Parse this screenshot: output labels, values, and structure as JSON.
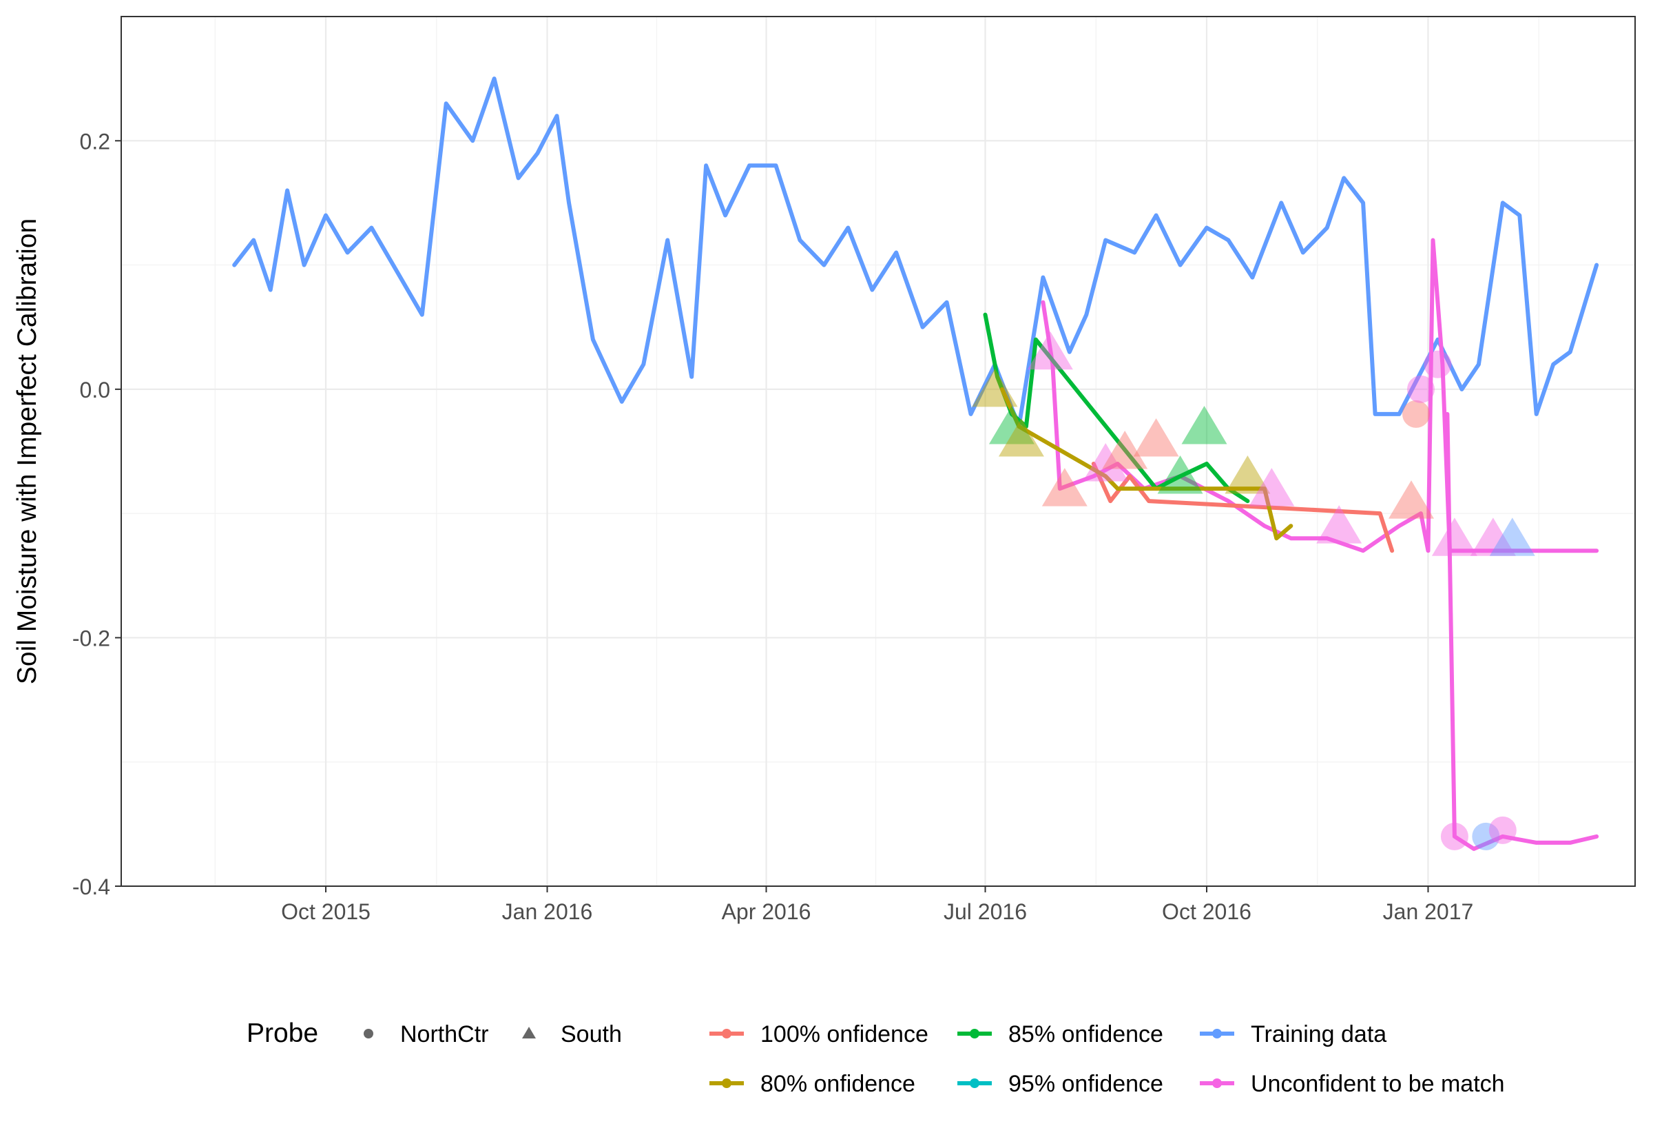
{
  "chart_data": {
    "type": "line",
    "title": "",
    "xlabel": "",
    "ylabel": "Soil Moisture with Imperfect Calibration",
    "x_axis": {
      "type": "date",
      "range": [
        "2015-07-08",
        "2017-03-28"
      ],
      "ticks": [
        {
          "date": "2015-10-01",
          "label": "Oct 2015"
        },
        {
          "date": "2016-01-01",
          "label": "Jan 2016"
        },
        {
          "date": "2016-04-01",
          "label": "Apr 2016"
        },
        {
          "date": "2016-07-01",
          "label": "Jul 2016"
        },
        {
          "date": "2016-10-01",
          "label": "Oct 2016"
        },
        {
          "date": "2017-01-01",
          "label": "Jan 2017"
        }
      ]
    },
    "y_axis": {
      "range": [
        -0.4,
        0.3
      ],
      "ticks": [
        {
          "value": 0.2,
          "label": "0.2"
        },
        {
          "value": 0.0,
          "label": "0.0"
        },
        {
          "value": -0.2,
          "label": "-0.2"
        },
        {
          "value": -0.4,
          "label": "-0.4"
        }
      ]
    },
    "grid": true,
    "legend_position": "bottom",
    "shape_legend": {
      "title": "Probe",
      "items": [
        {
          "label": "NorthCtr",
          "shape": "circle"
        },
        {
          "label": "South",
          "shape": "triangle"
        }
      ]
    },
    "color_legend": [
      {
        "label": "100% onfidence",
        "color": "#F8766D"
      },
      {
        "label": "80% onfidence",
        "color": "#B79F00"
      },
      {
        "label": "85% onfidence",
        "color": "#00BA38"
      },
      {
        "label": "95% onfidence",
        "color": "#00BFC4"
      },
      {
        "label": "Training data",
        "color": "#619CFF"
      },
      {
        "label": "Unconfident to be match",
        "color": "#F564E3"
      }
    ],
    "series": [
      {
        "name": "Training data",
        "color": "#619CFF",
        "points": [
          [
            "2015-08-24",
            0.1
          ],
          [
            "2015-09-01",
            0.12
          ],
          [
            "2015-09-08",
            0.08
          ],
          [
            "2015-09-15",
            0.16
          ],
          [
            "2015-09-22",
            0.1
          ],
          [
            "2015-10-01",
            0.14
          ],
          [
            "2015-10-10",
            0.11
          ],
          [
            "2015-10-20",
            0.13
          ],
          [
            "2015-11-01",
            0.09
          ],
          [
            "2015-11-10",
            0.06
          ],
          [
            "2015-11-20",
            0.23
          ],
          [
            "2015-12-01",
            0.2
          ],
          [
            "2015-12-10",
            0.25
          ],
          [
            "2015-12-20",
            0.17
          ],
          [
            "2015-12-28",
            0.19
          ],
          [
            "2016-01-05",
            0.22
          ],
          [
            "2016-01-10",
            0.15
          ],
          [
            "2016-01-20",
            0.04
          ],
          [
            "2016-02-01",
            -0.01
          ],
          [
            "2016-02-10",
            0.02
          ],
          [
            "2016-02-20",
            0.12
          ],
          [
            "2016-03-01",
            0.01
          ],
          [
            "2016-03-07",
            0.18
          ],
          [
            "2016-03-15",
            0.14
          ],
          [
            "2016-03-25",
            0.18
          ],
          [
            "2016-04-05",
            0.18
          ],
          [
            "2016-04-15",
            0.12
          ],
          [
            "2016-04-25",
            0.1
          ],
          [
            "2016-05-05",
            0.13
          ],
          [
            "2016-05-15",
            0.08
          ],
          [
            "2016-05-25",
            0.11
          ],
          [
            "2016-06-05",
            0.05
          ],
          [
            "2016-06-15",
            0.07
          ],
          [
            "2016-06-25",
            -0.02
          ],
          [
            "2016-07-05",
            0.02
          ],
          [
            "2016-07-15",
            -0.03
          ],
          [
            "2016-07-25",
            0.09
          ],
          [
            "2016-08-05",
            0.03
          ],
          [
            "2016-08-12",
            0.06
          ],
          [
            "2016-08-20",
            0.12
          ],
          [
            "2016-09-01",
            0.11
          ],
          [
            "2016-09-10",
            0.14
          ],
          [
            "2016-09-20",
            0.1
          ],
          [
            "2016-10-01",
            0.13
          ],
          [
            "2016-10-10",
            0.12
          ],
          [
            "2016-10-20",
            0.09
          ],
          [
            "2016-11-01",
            0.15
          ],
          [
            "2016-11-10",
            0.11
          ],
          [
            "2016-11-20",
            0.13
          ],
          [
            "2016-11-27",
            0.17
          ],
          [
            "2016-12-05",
            0.15
          ],
          [
            "2016-12-10",
            -0.02
          ],
          [
            "2016-12-20",
            -0.02
          ],
          [
            "2016-12-28",
            0.01
          ],
          [
            "2017-01-05",
            0.04
          ],
          [
            "2017-01-15",
            0.0
          ],
          [
            "2017-01-22",
            0.02
          ],
          [
            "2017-02-01",
            0.15
          ],
          [
            "2017-02-08",
            0.14
          ],
          [
            "2017-02-15",
            -0.02
          ],
          [
            "2017-02-22",
            0.02
          ],
          [
            "2017-03-01",
            0.03
          ],
          [
            "2017-03-12",
            0.1
          ]
        ]
      },
      {
        "name": "Unconfident to be match",
        "color": "#F564E3",
        "points": [
          [
            "2016-07-25",
            0.07
          ],
          [
            "2016-07-29",
            0.02
          ],
          [
            "2016-08-01",
            -0.08
          ],
          [
            "2016-08-15",
            -0.07
          ],
          [
            "2016-08-25",
            -0.06
          ],
          [
            "2016-09-05",
            -0.08
          ],
          [
            "2016-09-20",
            -0.07
          ],
          [
            "2016-10-10",
            -0.09
          ],
          [
            "2016-10-25",
            -0.11
          ],
          [
            "2016-11-05",
            -0.12
          ],
          [
            "2016-11-20",
            -0.12
          ],
          [
            "2016-12-05",
            -0.13
          ],
          [
            "2016-12-20",
            -0.11
          ],
          [
            "2016-12-29",
            -0.1
          ],
          [
            "2017-01-01",
            -0.13
          ],
          [
            "2017-01-03",
            0.12
          ],
          [
            "2017-01-07",
            0.02
          ],
          [
            "2017-01-10",
            -0.13
          ],
          [
            "2017-01-20",
            -0.13
          ],
          [
            "2017-02-10",
            -0.13
          ],
          [
            "2017-03-01",
            -0.13
          ],
          [
            "2017-03-12",
            -0.13
          ]
        ]
      },
      {
        "name": "Unconfident to be match",
        "color": "#F564E3",
        "points": [
          [
            "2017-01-09",
            -0.02
          ],
          [
            "2017-01-12",
            -0.36
          ],
          [
            "2017-01-20",
            -0.37
          ],
          [
            "2017-02-01",
            -0.36
          ],
          [
            "2017-02-15",
            -0.365
          ],
          [
            "2017-03-01",
            -0.365
          ],
          [
            "2017-03-12",
            -0.36
          ]
        ]
      },
      {
        "name": "85% onfidence",
        "color": "#00BA38",
        "points": [
          [
            "2016-07-01",
            0.06
          ],
          [
            "2016-07-06",
            0.01
          ],
          [
            "2016-07-12",
            -0.02
          ],
          [
            "2016-07-18",
            -0.03
          ],
          [
            "2016-07-22",
            0.04
          ],
          [
            "2016-09-10",
            -0.08
          ],
          [
            "2016-09-20",
            -0.07
          ],
          [
            "2016-10-01",
            -0.06
          ],
          [
            "2016-10-10",
            -0.08
          ],
          [
            "2016-10-18",
            -0.09
          ]
        ]
      },
      {
        "name": "100% onfidence",
        "color": "#F8766D",
        "points": [
          [
            "2016-08-15",
            -0.06
          ],
          [
            "2016-08-22",
            -0.09
          ],
          [
            "2016-08-30",
            -0.07
          ],
          [
            "2016-09-07",
            -0.09
          ],
          [
            "2016-12-12",
            -0.1
          ],
          [
            "2016-12-17",
            -0.13
          ]
        ]
      },
      {
        "name": "80% onfidence",
        "color": "#B79F00",
        "points": [
          [
            "2016-07-08",
            0.0
          ],
          [
            "2016-07-15",
            -0.03
          ],
          [
            "2016-08-20",
            -0.07
          ],
          [
            "2016-08-25",
            -0.08
          ],
          [
            "2016-10-25",
            -0.08
          ],
          [
            "2016-10-30",
            -0.12
          ],
          [
            "2016-11-05",
            -0.11
          ]
        ]
      }
    ],
    "markers": [
      {
        "date": "2016-07-05",
        "value": 0.0,
        "shape": "triangle",
        "color": "#B79F00"
      },
      {
        "date": "2016-07-12",
        "value": -0.03,
        "shape": "triangle",
        "color": "#00BA38"
      },
      {
        "date": "2016-07-16",
        "value": -0.04,
        "shape": "triangle",
        "color": "#B79F00"
      },
      {
        "date": "2016-07-28",
        "value": 0.03,
        "shape": "triangle",
        "color": "#F564E3"
      },
      {
        "date": "2016-08-03",
        "value": -0.08,
        "shape": "triangle",
        "color": "#F8766D"
      },
      {
        "date": "2016-08-20",
        "value": -0.06,
        "shape": "triangle",
        "color": "#F564E3"
      },
      {
        "date": "2016-08-28",
        "value": -0.05,
        "shape": "triangle",
        "color": "#F8766D"
      },
      {
        "date": "2016-09-10",
        "value": -0.04,
        "shape": "triangle",
        "color": "#F8766D"
      },
      {
        "date": "2016-09-20",
        "value": -0.07,
        "shape": "triangle",
        "color": "#00BA38"
      },
      {
        "date": "2016-09-30",
        "value": -0.03,
        "shape": "triangle",
        "color": "#00BA38"
      },
      {
        "date": "2016-10-18",
        "value": -0.07,
        "shape": "triangle",
        "color": "#B79F00"
      },
      {
        "date": "2016-10-28",
        "value": -0.08,
        "shape": "triangle",
        "color": "#F564E3"
      },
      {
        "date": "2016-11-25",
        "value": -0.11,
        "shape": "triangle",
        "color": "#F564E3"
      },
      {
        "date": "2016-12-25",
        "value": -0.09,
        "shape": "triangle",
        "color": "#F8766D"
      },
      {
        "date": "2017-01-12",
        "value": -0.12,
        "shape": "triangle",
        "color": "#F564E3"
      },
      {
        "date": "2017-01-28",
        "value": -0.12,
        "shape": "triangle",
        "color": "#F564E3"
      },
      {
        "date": "2017-02-05",
        "value": -0.12,
        "shape": "triangle",
        "color": "#619CFF"
      },
      {
        "date": "2016-12-27",
        "value": -0.02,
        "shape": "circle",
        "color": "#F8766D"
      },
      {
        "date": "2016-12-29",
        "value": 0.0,
        "shape": "circle",
        "color": "#F564E3"
      },
      {
        "date": "2017-01-05",
        "value": 0.02,
        "shape": "circle",
        "color": "#F564E3"
      },
      {
        "date": "2017-01-12",
        "value": -0.36,
        "shape": "circle",
        "color": "#F564E3"
      },
      {
        "date": "2017-01-25",
        "value": -0.36,
        "shape": "circle",
        "color": "#619CFF"
      },
      {
        "date": "2017-02-01",
        "value": -0.355,
        "shape": "circle",
        "color": "#F564E3"
      }
    ]
  }
}
